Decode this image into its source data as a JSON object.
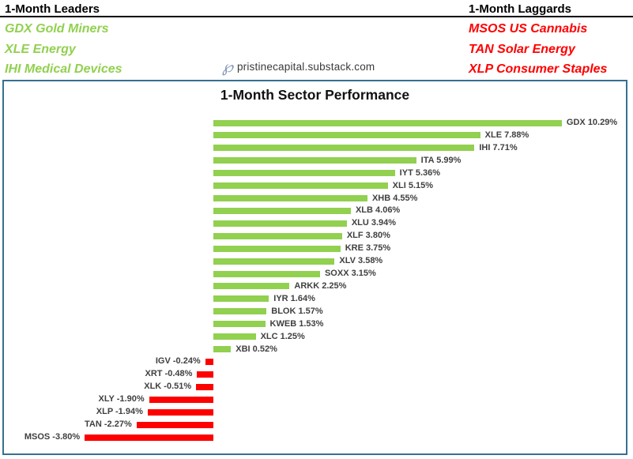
{
  "header": {
    "leaders": {
      "title": "1-Month Leaders",
      "items": [
        "GDX Gold Miners",
        "XLE Energy",
        "IHI Medical Devices"
      ]
    },
    "laggards": {
      "title": "1-Month Laggards",
      "items": [
        "MSOS US Cannabis",
        "TAN Solar Energy",
        "XLP Consumer Staples"
      ]
    },
    "watermark": {
      "icon_glyph": "℘",
      "text": "pristinecapital.substack.com"
    }
  },
  "colors": {
    "positive_bar": "#92D050",
    "negative_bar": "#FF0000",
    "leaders_text": "#92D050",
    "laggards_text": "#FF0000",
    "panel_border": "#35718F",
    "bar_label": "#404040",
    "watermark_icon": "#8293B7"
  },
  "chart_data": {
    "type": "bar",
    "orientation": "horizontal",
    "title": "1-Month Sector Performance",
    "categories": [
      "GDX",
      "XLE",
      "IHI",
      "ITA",
      "IYT",
      "XLI",
      "XHB",
      "XLB",
      "XLU",
      "XLF",
      "KRE",
      "XLV",
      "SOXX",
      "ARKK",
      "IYR",
      "BLOK",
      "KWEB",
      "XLC",
      "XBI",
      "IGV",
      "XRT",
      "XLK",
      "XLY",
      "XLP",
      "TAN",
      "MSOS"
    ],
    "values": [
      10.29,
      7.88,
      7.71,
      5.99,
      5.36,
      5.15,
      4.55,
      4.06,
      3.94,
      3.8,
      3.75,
      3.58,
      3.15,
      2.25,
      1.64,
      1.57,
      1.53,
      1.25,
      0.52,
      -0.24,
      -0.48,
      -0.51,
      -1.9,
      -1.94,
      -2.27,
      -3.8
    ],
    "value_suffix": "%",
    "data_label_format": "TICKER VALUE%",
    "xlim": [
      -4.5,
      12
    ],
    "grid": false,
    "legend": false,
    "sorted": "descending"
  }
}
